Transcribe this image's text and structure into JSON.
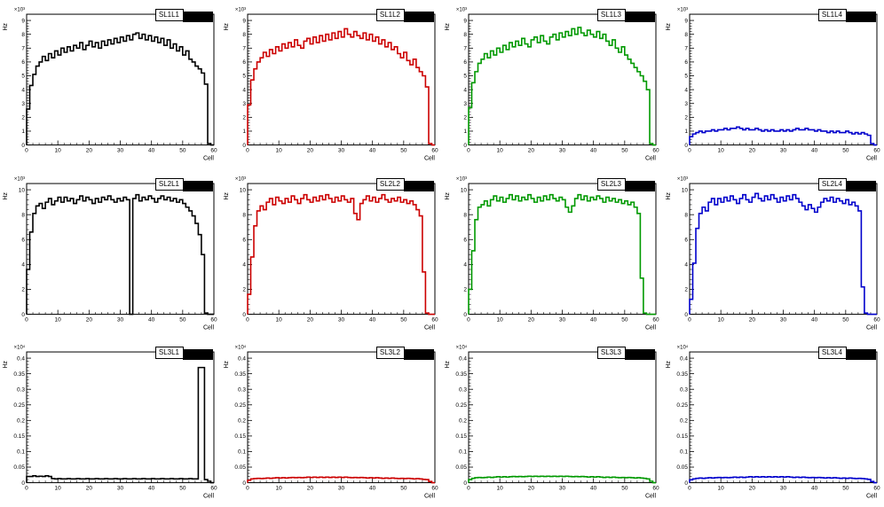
{
  "page": {
    "background": "#ffffff"
  },
  "chart_data": [
    {
      "type": "line",
      "title": "SL1L1",
      "color": "#000000",
      "xlabel": "Cell",
      "ylabel": "Hz",
      "scale_label": "×10³",
      "xlim": [
        0,
        60
      ],
      "ylim": [
        0,
        9.45
      ],
      "xticks": [
        0,
        10,
        20,
        30,
        40,
        50,
        60
      ],
      "yticks": [
        0,
        1,
        2,
        3,
        4,
        5,
        6,
        7,
        8,
        9
      ],
      "values": [
        2.6,
        4.3,
        5.1,
        5.7,
        6.0,
        6.4,
        6.1,
        6.6,
        6.3,
        6.8,
        6.5,
        7.0,
        6.7,
        7.1,
        6.8,
        7.2,
        7.0,
        7.4,
        6.9,
        7.2,
        7.5,
        7.1,
        7.4,
        7.0,
        7.5,
        7.2,
        7.6,
        7.3,
        7.7,
        7.4,
        7.8,
        7.5,
        7.9,
        7.6,
        8.0,
        8.1,
        7.7,
        8.0,
        7.6,
        7.9,
        7.5,
        7.8,
        7.4,
        7.7,
        7.2,
        7.6,
        7.0,
        7.3,
        6.8,
        7.1,
        6.5,
        6.8,
        6.2,
        6.0,
        5.7,
        5.5,
        5.2,
        4.4,
        0.1,
        0.0
      ]
    },
    {
      "type": "line",
      "title": "SL1L2",
      "color": "#cc0000",
      "xlabel": "Cell",
      "ylabel": "Hz",
      "scale_label": "×10³",
      "xlim": [
        0,
        60
      ],
      "ylim": [
        0,
        9.45
      ],
      "xticks": [
        0,
        10,
        20,
        30,
        40,
        50,
        60
      ],
      "yticks": [
        0,
        1,
        2,
        3,
        4,
        5,
        6,
        7,
        8,
        9
      ],
      "values": [
        2.9,
        4.7,
        5.5,
        6.0,
        6.3,
        6.7,
        6.4,
        6.9,
        6.6,
        7.1,
        6.8,
        7.3,
        7.0,
        7.4,
        7.1,
        7.6,
        7.2,
        7.0,
        7.5,
        7.7,
        7.3,
        7.8,
        7.4,
        7.9,
        7.5,
        8.0,
        7.6,
        8.1,
        7.7,
        8.2,
        7.8,
        8.4,
        8.0,
        7.8,
        8.2,
        7.9,
        7.7,
        8.1,
        7.6,
        8.0,
        7.5,
        7.8,
        7.3,
        7.6,
        7.1,
        7.4,
        6.9,
        7.1,
        6.6,
        6.3,
        6.7,
        6.1,
        5.8,
        6.2,
        5.6,
        5.3,
        5.0,
        4.2,
        0.1,
        0.0
      ]
    },
    {
      "type": "line",
      "title": "SL1L3",
      "color": "#009900",
      "xlabel": "Cell",
      "ylabel": "Hz",
      "scale_label": "×10³",
      "xlim": [
        0,
        60
      ],
      "ylim": [
        0,
        9.45
      ],
      "xticks": [
        0,
        10,
        20,
        30,
        40,
        50,
        60
      ],
      "yticks": [
        0,
        1,
        2,
        3,
        4,
        5,
        6,
        7,
        8,
        9
      ],
      "values": [
        2.7,
        4.5,
        5.3,
        5.9,
        6.2,
        6.6,
        6.3,
        6.8,
        6.5,
        7.0,
        6.7,
        7.2,
        6.9,
        7.4,
        7.1,
        7.5,
        7.2,
        7.7,
        7.3,
        7.1,
        7.6,
        7.8,
        7.4,
        7.9,
        7.5,
        7.3,
        7.8,
        8.0,
        7.6,
        8.1,
        7.8,
        8.2,
        7.9,
        8.4,
        8.0,
        8.5,
        8.1,
        7.9,
        8.3,
        8.0,
        7.8,
        8.2,
        7.7,
        8.0,
        7.5,
        7.2,
        7.6,
        7.0,
        6.7,
        7.1,
        6.5,
        6.2,
        5.9,
        5.6,
        5.3,
        5.0,
        4.6,
        4.0,
        0.1,
        0.0
      ]
    },
    {
      "type": "line",
      "title": "SL1L4",
      "color": "#0000cc",
      "xlabel": "Cell",
      "ylabel": "Hz",
      "scale_label": "×10³",
      "xlim": [
        0,
        60
      ],
      "ylim": [
        0,
        9.45
      ],
      "xticks": [
        0,
        10,
        20,
        30,
        40,
        50,
        60
      ],
      "yticks": [
        0,
        1,
        2,
        3,
        4,
        5,
        6,
        7,
        8,
        9
      ],
      "values": [
        0.6,
        0.8,
        0.9,
        1.0,
        0.9,
        1.0,
        1.0,
        1.1,
        1.0,
        1.1,
        1.1,
        1.2,
        1.1,
        1.2,
        1.2,
        1.3,
        1.2,
        1.1,
        1.2,
        1.1,
        1.1,
        1.2,
        1.1,
        1.0,
        1.1,
        1.0,
        1.1,
        1.0,
        1.0,
        1.1,
        1.0,
        1.1,
        1.0,
        1.1,
        1.2,
        1.1,
        1.1,
        1.2,
        1.1,
        1.1,
        1.0,
        1.1,
        1.0,
        1.0,
        0.9,
        1.0,
        0.9,
        1.0,
        0.9,
        0.9,
        1.0,
        0.9,
        0.8,
        0.9,
        0.8,
        0.9,
        0.8,
        0.7,
        0.1,
        0.0
      ]
    },
    {
      "type": "line",
      "title": "SL2L1",
      "color": "#000000",
      "xlabel": "Cell",
      "ylabel": "Hz",
      "scale_label": "×10³",
      "xlim": [
        0,
        60
      ],
      "ylim": [
        0,
        10.5
      ],
      "xticks": [
        0,
        10,
        20,
        30,
        40,
        50,
        60
      ],
      "yticks": [
        0,
        2,
        4,
        6,
        8,
        10
      ],
      "values": [
        3.6,
        6.6,
        8.1,
        8.7,
        8.9,
        8.5,
        9.0,
        9.3,
        8.8,
        9.1,
        9.4,
        9.0,
        9.4,
        9.1,
        9.3,
        8.9,
        9.2,
        9.5,
        9.1,
        9.4,
        9.2,
        8.9,
        9.3,
        9.0,
        9.4,
        9.2,
        9.5,
        9.2,
        9.0,
        9.3,
        9.1,
        9.4,
        9.2,
        0.0,
        9.3,
        9.6,
        9.1,
        9.4,
        9.2,
        9.5,
        9.3,
        9.0,
        9.3,
        9.5,
        9.2,
        9.4,
        9.1,
        9.3,
        9.0,
        9.2,
        8.9,
        8.6,
        8.3,
        7.9,
        7.3,
        6.4,
        4.8,
        0.1,
        0.0,
        0.0
      ]
    },
    {
      "type": "line",
      "title": "SL2L2",
      "color": "#cc0000",
      "xlabel": "Cell",
      "ylabel": "Hz",
      "scale_label": "×10³",
      "xlim": [
        0,
        60
      ],
      "ylim": [
        0,
        10.5
      ],
      "xticks": [
        0,
        10,
        20,
        30,
        40,
        50,
        60
      ],
      "yticks": [
        0,
        2,
        4,
        6,
        8,
        10
      ],
      "values": [
        1.6,
        4.6,
        7.1,
        8.3,
        8.7,
        8.4,
        9.0,
        9.3,
        8.8,
        9.4,
        9.1,
        8.9,
        9.3,
        9.0,
        9.5,
        9.2,
        8.9,
        9.3,
        9.6,
        9.2,
        9.0,
        9.4,
        9.1,
        9.5,
        9.2,
        9.6,
        9.3,
        9.0,
        9.4,
        9.1,
        9.5,
        9.2,
        9.0,
        9.3,
        8.1,
        7.6,
        8.9,
        9.2,
        9.5,
        9.1,
        9.4,
        9.0,
        9.3,
        9.6,
        9.2,
        9.0,
        9.3,
        9.1,
        9.4,
        9.0,
        9.2,
        8.9,
        9.1,
        8.8,
        8.4,
        7.9,
        3.4,
        0.1,
        0.0,
        0.0
      ]
    },
    {
      "type": "line",
      "title": "SL2L3",
      "color": "#009900",
      "xlabel": "Cell",
      "ylabel": "Hz",
      "scale_label": "×10³",
      "xlim": [
        0,
        60
      ],
      "ylim": [
        0,
        10.5
      ],
      "xticks": [
        0,
        10,
        20,
        30,
        40,
        50,
        60
      ],
      "yticks": [
        0,
        2,
        4,
        6,
        8,
        10
      ],
      "values": [
        2.0,
        5.1,
        7.6,
        8.6,
        8.8,
        9.1,
        8.7,
        9.2,
        9.5,
        9.1,
        9.4,
        9.0,
        9.3,
        9.6,
        9.2,
        9.5,
        9.1,
        9.4,
        9.2,
        9.6,
        9.3,
        9.0,
        9.4,
        9.1,
        9.5,
        9.2,
        9.6,
        9.3,
        9.1,
        9.4,
        9.2,
        8.6,
        8.2,
        8.7,
        9.3,
        9.6,
        9.2,
        9.5,
        9.1,
        9.4,
        9.2,
        9.5,
        9.3,
        9.0,
        9.4,
        9.1,
        9.3,
        9.0,
        9.2,
        8.9,
        9.1,
        8.8,
        9.0,
        8.6,
        8.1,
        2.9,
        0.1,
        0.0,
        0.0,
        0.0
      ]
    },
    {
      "type": "line",
      "title": "SL2L4",
      "color": "#0000cc",
      "xlabel": "Cell",
      "ylabel": "Hz",
      "scale_label": "×10³",
      "xlim": [
        0,
        60
      ],
      "ylim": [
        0,
        10.5
      ],
      "xticks": [
        0,
        10,
        20,
        30,
        40,
        50,
        60
      ],
      "yticks": [
        0,
        2,
        4,
        6,
        8,
        10
      ],
      "values": [
        1.2,
        4.1,
        6.9,
        8.1,
        8.6,
        8.3,
        9.0,
        9.3,
        8.8,
        9.3,
        9.0,
        9.4,
        9.1,
        9.5,
        9.2,
        8.9,
        9.3,
        9.6,
        9.2,
        9.0,
        9.4,
        9.7,
        9.3,
        9.1,
        9.5,
        9.2,
        9.6,
        9.3,
        9.0,
        9.4,
        9.1,
        9.5,
        9.2,
        9.6,
        9.3,
        9.0,
        8.7,
        8.4,
        8.8,
        8.5,
        8.2,
        8.6,
        9.0,
        9.3,
        9.1,
        9.4,
        9.0,
        9.3,
        9.1,
        8.9,
        9.2,
        8.8,
        9.0,
        8.7,
        8.3,
        2.2,
        0.1,
        0.0,
        0.0,
        0.0
      ]
    },
    {
      "type": "line",
      "title": "SL3L1",
      "color": "#000000",
      "xlabel": "Cell",
      "ylabel": "Hz",
      "scale_label": "×10⁴",
      "xlim": [
        0,
        60
      ],
      "ylim": [
        0,
        0.42
      ],
      "xticks": [
        0,
        10,
        20,
        30,
        40,
        50,
        60
      ],
      "yticks": [
        0,
        0.05,
        0.1,
        0.15,
        0.2,
        0.25,
        0.3,
        0.35,
        0.4
      ],
      "values": [
        0.02,
        0.02,
        0.022,
        0.02,
        0.021,
        0.02,
        0.022,
        0.02,
        0.013,
        0.012,
        0.013,
        0.012,
        0.012,
        0.013,
        0.012,
        0.012,
        0.013,
        0.012,
        0.012,
        0.013,
        0.012,
        0.012,
        0.013,
        0.012,
        0.012,
        0.013,
        0.012,
        0.012,
        0.013,
        0.012,
        0.012,
        0.013,
        0.012,
        0.012,
        0.013,
        0.012,
        0.012,
        0.013,
        0.012,
        0.012,
        0.013,
        0.012,
        0.012,
        0.013,
        0.012,
        0.012,
        0.013,
        0.012,
        0.012,
        0.013,
        0.012,
        0.012,
        0.013,
        0.012,
        0.012,
        0.37,
        0.37,
        0.01,
        0.005,
        0.0
      ]
    },
    {
      "type": "line",
      "title": "SL3L2",
      "color": "#cc0000",
      "xlabel": "Cell",
      "ylabel": "Hz",
      "scale_label": "×10⁴",
      "xlim": [
        0,
        60
      ],
      "ylim": [
        0,
        0.42
      ],
      "xticks": [
        0,
        10,
        20,
        30,
        40,
        50,
        60
      ],
      "yticks": [
        0,
        0.05,
        0.1,
        0.15,
        0.2,
        0.25,
        0.3,
        0.35,
        0.4
      ],
      "values": [
        0.008,
        0.012,
        0.013,
        0.014,
        0.013,
        0.014,
        0.015,
        0.014,
        0.015,
        0.016,
        0.015,
        0.016,
        0.015,
        0.016,
        0.017,
        0.016,
        0.017,
        0.016,
        0.017,
        0.018,
        0.017,
        0.018,
        0.017,
        0.018,
        0.017,
        0.018,
        0.017,
        0.018,
        0.017,
        0.018,
        0.017,
        0.018,
        0.017,
        0.016,
        0.017,
        0.016,
        0.017,
        0.016,
        0.015,
        0.016,
        0.015,
        0.016,
        0.015,
        0.014,
        0.015,
        0.014,
        0.015,
        0.014,
        0.013,
        0.014,
        0.013,
        0.014,
        0.013,
        0.012,
        0.013,
        0.012,
        0.011,
        0.01,
        0.004,
        0.0
      ]
    },
    {
      "type": "line",
      "title": "SL3L3",
      "color": "#009900",
      "xlabel": "Cell",
      "ylabel": "Hz",
      "scale_label": "×10⁴",
      "xlim": [
        0,
        60
      ],
      "ylim": [
        0,
        0.42
      ],
      "xticks": [
        0,
        10,
        20,
        30,
        40,
        50,
        60
      ],
      "yticks": [
        0,
        0.05,
        0.1,
        0.15,
        0.2,
        0.25,
        0.3,
        0.35,
        0.4
      ],
      "values": [
        0.01,
        0.014,
        0.016,
        0.017,
        0.016,
        0.017,
        0.018,
        0.017,
        0.018,
        0.019,
        0.018,
        0.019,
        0.018,
        0.019,
        0.02,
        0.019,
        0.02,
        0.019,
        0.02,
        0.021,
        0.02,
        0.021,
        0.02,
        0.021,
        0.02,
        0.021,
        0.02,
        0.021,
        0.02,
        0.021,
        0.02,
        0.021,
        0.02,
        0.019,
        0.02,
        0.019,
        0.02,
        0.019,
        0.018,
        0.019,
        0.018,
        0.019,
        0.018,
        0.017,
        0.018,
        0.017,
        0.018,
        0.017,
        0.016,
        0.017,
        0.016,
        0.017,
        0.016,
        0.015,
        0.016,
        0.015,
        0.014,
        0.012,
        0.005,
        0.0
      ]
    },
    {
      "type": "line",
      "title": "SL3L4",
      "color": "#0000cc",
      "xlabel": "Cell",
      "ylabel": "Hz",
      "scale_label": "×10⁴",
      "xlim": [
        0,
        60
      ],
      "ylim": [
        0,
        0.42
      ],
      "xticks": [
        0,
        10,
        20,
        30,
        40,
        50,
        60
      ],
      "yticks": [
        0,
        0.05,
        0.1,
        0.15,
        0.2,
        0.25,
        0.3,
        0.35,
        0.4
      ],
      "values": [
        0.009,
        0.012,
        0.014,
        0.015,
        0.014,
        0.015,
        0.016,
        0.015,
        0.016,
        0.017,
        0.016,
        0.017,
        0.016,
        0.017,
        0.018,
        0.017,
        0.018,
        0.017,
        0.018,
        0.019,
        0.018,
        0.019,
        0.018,
        0.019,
        0.018,
        0.019,
        0.018,
        0.019,
        0.018,
        0.019,
        0.018,
        0.019,
        0.018,
        0.017,
        0.018,
        0.017,
        0.018,
        0.017,
        0.016,
        0.017,
        0.016,
        0.017,
        0.016,
        0.015,
        0.016,
        0.015,
        0.016,
        0.015,
        0.014,
        0.015,
        0.014,
        0.015,
        0.014,
        0.013,
        0.014,
        0.013,
        0.012,
        0.011,
        0.004,
        0.0
      ]
    }
  ]
}
